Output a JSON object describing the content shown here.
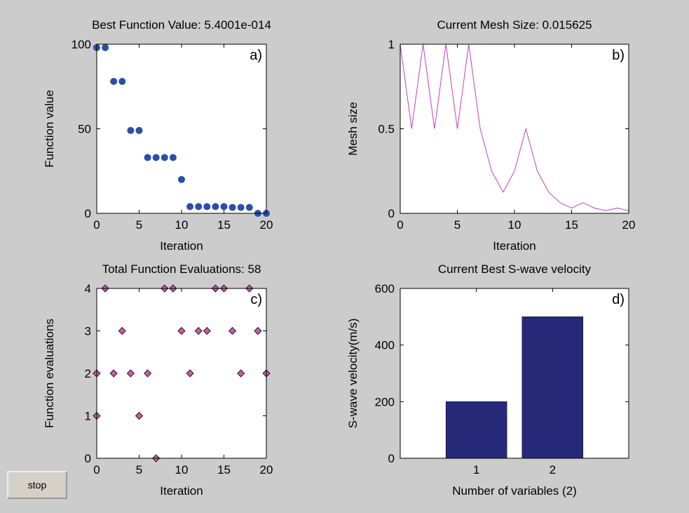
{
  "chart_data": [
    {
      "type": "scatter",
      "title": "Best Function Value: 5.4001e-014",
      "annotation": "a)",
      "xlabel": "Iteration",
      "ylabel": "Function value",
      "marker": "circle",
      "color": "#2b4fa8",
      "x": [
        0,
        1,
        2,
        3,
        4,
        5,
        6,
        7,
        8,
        9,
        10,
        11,
        12,
        13,
        14,
        15,
        16,
        17,
        18,
        19,
        20
      ],
      "values": [
        98,
        98,
        78,
        78,
        49,
        49,
        33,
        33,
        33,
        33,
        20,
        4,
        4,
        4,
        4,
        4,
        3.5,
        3.5,
        3.5,
        0,
        0
      ],
      "xlim": [
        0,
        20
      ],
      "xticks": [
        0,
        5,
        10,
        15,
        20
      ],
      "ylim": [
        0,
        100
      ],
      "yticks": [
        0,
        50,
        100
      ]
    },
    {
      "type": "line",
      "title": "Current Mesh Size: 0.015625",
      "annotation": "b)",
      "xlabel": "Iteration",
      "ylabel": "Mesh size",
      "color": "#c040c0",
      "x": [
        0,
        1,
        2,
        3,
        4,
        5,
        6,
        7,
        8,
        9,
        10,
        11,
        12,
        13,
        14,
        15,
        16,
        17,
        18,
        19,
        20
      ],
      "values": [
        1,
        0.5,
        1,
        0.5,
        1,
        0.5,
        1,
        0.5,
        0.25,
        0.125,
        0.25,
        0.5,
        0.25,
        0.125,
        0.0625,
        0.03125,
        0.0625,
        0.03125,
        0.015625,
        0.03125,
        0.015625
      ],
      "xlim": [
        0,
        20
      ],
      "xticks": [
        0,
        5,
        10,
        15,
        20
      ],
      "ylim": [
        0,
        1
      ],
      "yticks": [
        0,
        0.5,
        1
      ]
    },
    {
      "type": "scatter",
      "title": "Total Function Evaluations: 58",
      "annotation": "c)",
      "xlabel": "Iteration",
      "ylabel": "Function evaluations",
      "marker": "diamond",
      "color": "#c858a8",
      "x": [
        0,
        0,
        1,
        2,
        3,
        4,
        5,
        6,
        7,
        8,
        9,
        10,
        11,
        12,
        13,
        14,
        15,
        16,
        17,
        18,
        19,
        20
      ],
      "values": [
        2,
        1,
        4,
        2,
        3,
        2,
        1,
        2,
        0,
        4,
        4,
        3,
        2,
        3,
        3,
        4,
        4,
        3,
        2,
        4,
        3,
        2
      ],
      "xlim": [
        0,
        20
      ],
      "xticks": [
        0,
        5,
        10,
        15,
        20
      ],
      "ylim": [
        0,
        4
      ],
      "yticks": [
        0,
        1,
        2,
        3,
        4
      ]
    },
    {
      "type": "bar",
      "title": "Current Best S-wave velocity",
      "annotation": "d)",
      "xlabel": "Number of variables (2)",
      "ylabel": "S-wave velocity(m/s)",
      "color": "#262a78",
      "x": [
        1,
        2
      ],
      "values": [
        200,
        500
      ],
      "xlim": [
        0,
        3
      ],
      "xticks": [
        1,
        2
      ],
      "ylim": [
        0,
        600
      ],
      "yticks": [
        0,
        200,
        400,
        600
      ]
    }
  ],
  "button": "stop"
}
